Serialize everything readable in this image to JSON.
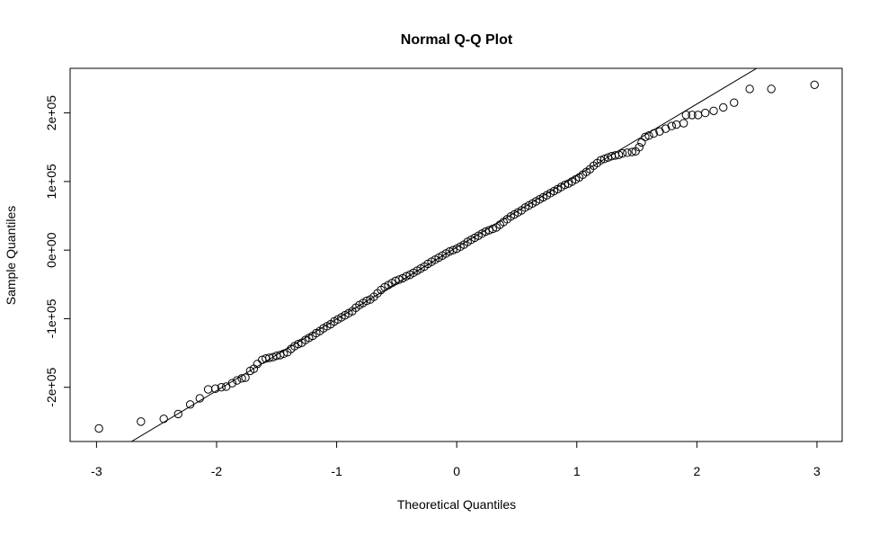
{
  "chart_data": {
    "type": "scatter",
    "title": "Normal Q-Q Plot",
    "xlabel": "Theoretical Quantiles",
    "ylabel": "Sample Quantiles",
    "xlim": [
      -3.22,
      3.21
    ],
    "ylim": [
      -279000,
      265000
    ],
    "x_ticks": [
      -3,
      -2,
      -1,
      0,
      1,
      2,
      3
    ],
    "x_tick_labels": [
      "-3",
      "-2",
      "-1",
      "0",
      "1",
      "2",
      "3"
    ],
    "y_ticks": [
      -200000,
      -100000,
      0,
      100000,
      200000
    ],
    "y_tick_labels": [
      "-2e+05",
      "-1e+05",
      "0e+00",
      "1e+05",
      "2e+05"
    ],
    "grid": false,
    "reference_line": {
      "intercept": 4000,
      "slope": 104500
    },
    "points": {
      "x": [
        -2.98,
        -2.63,
        -2.44,
        -2.32,
        -2.22,
        -2.14,
        -2.07,
        -2.01,
        -1.96,
        -1.92,
        -1.87,
        -1.83,
        -1.79,
        -1.76,
        -1.72,
        -1.69,
        -1.66,
        -1.62,
        -1.59,
        -1.56,
        -1.53,
        -1.5,
        -1.47,
        -1.44,
        -1.41,
        -1.38,
        -1.35,
        -1.32,
        -1.29,
        -1.26,
        -1.23,
        -1.2,
        -1.17,
        -1.14,
        -1.11,
        -1.08,
        -1.05,
        -1.02,
        -0.99,
        -0.96,
        -0.93,
        -0.9,
        -0.87,
        -0.84,
        -0.81,
        -0.78,
        -0.75,
        -0.72,
        -0.69,
        -0.66,
        -0.63,
        -0.6,
        -0.57,
        -0.54,
        -0.51,
        -0.48,
        -0.45,
        -0.42,
        -0.39,
        -0.36,
        -0.33,
        -0.3,
        -0.27,
        -0.24,
        -0.21,
        -0.18,
        -0.15,
        -0.12,
        -0.09,
        -0.06,
        -0.03,
        0.0,
        0.03,
        0.06,
        0.09,
        0.12,
        0.15,
        0.18,
        0.21,
        0.24,
        0.27,
        0.3,
        0.33,
        0.36,
        0.39,
        0.42,
        0.45,
        0.48,
        0.51,
        0.54,
        0.57,
        0.6,
        0.63,
        0.66,
        0.69,
        0.72,
        0.75,
        0.78,
        0.81,
        0.84,
        0.87,
        0.9,
        0.93,
        0.96,
        0.99,
        1.02,
        1.05,
        1.08,
        1.11,
        1.14,
        1.17,
        1.2,
        1.23,
        1.26,
        1.29,
        1.32,
        1.35,
        1.38,
        1.42,
        1.46,
        1.49,
        1.52,
        1.54,
        1.57,
        1.6,
        1.64,
        1.69,
        1.74,
        1.79,
        1.83,
        1.89,
        1.91,
        1.96,
        2.01,
        2.07,
        2.14,
        2.22,
        2.31,
        2.44,
        2.62,
        2.98
      ],
      "y": [
        -260000,
        -250000,
        -246000,
        -239000,
        -225000,
        -216000,
        -203000,
        -202000,
        -200000,
        -199000,
        -194000,
        -190000,
        -187000,
        -186000,
        -176000,
        -173000,
        -166000,
        -160000,
        -158000,
        -157000,
        -156000,
        -154000,
        -153000,
        -151000,
        -149000,
        -144000,
        -140000,
        -137000,
        -135000,
        -131000,
        -128000,
        -125000,
        -121000,
        -118000,
        -114000,
        -111000,
        -108000,
        -104000,
        -101000,
        -98000,
        -95000,
        -92000,
        -89000,
        -84000,
        -80000,
        -77000,
        -74000,
        -72000,
        -68000,
        -63000,
        -58000,
        -54000,
        -51000,
        -48000,
        -45000,
        -43000,
        -41000,
        -38000,
        -36000,
        -33000,
        -30000,
        -27000,
        -24000,
        -20000,
        -17000,
        -14000,
        -11000,
        -8000,
        -5000,
        -2000,
        0,
        2000,
        5000,
        8000,
        12000,
        15000,
        18000,
        21000,
        24000,
        27000,
        29000,
        31000,
        33000,
        37000,
        41000,
        45000,
        49000,
        52000,
        55000,
        58000,
        62000,
        65000,
        68000,
        71000,
        74000,
        77000,
        80000,
        83000,
        86000,
        89000,
        92000,
        95000,
        97000,
        100000,
        103000,
        106000,
        110000,
        114000,
        118000,
        123000,
        127000,
        131000,
        133000,
        135000,
        137000,
        138000,
        139000,
        141000,
        142000,
        143000,
        144000,
        150000,
        157000,
        165000,
        167000,
        170000,
        173000,
        177000,
        181000,
        183000,
        185000,
        197000,
        197000,
        197000,
        200000,
        203000,
        208000,
        215000,
        235000,
        235000,
        241000
      ]
    }
  }
}
